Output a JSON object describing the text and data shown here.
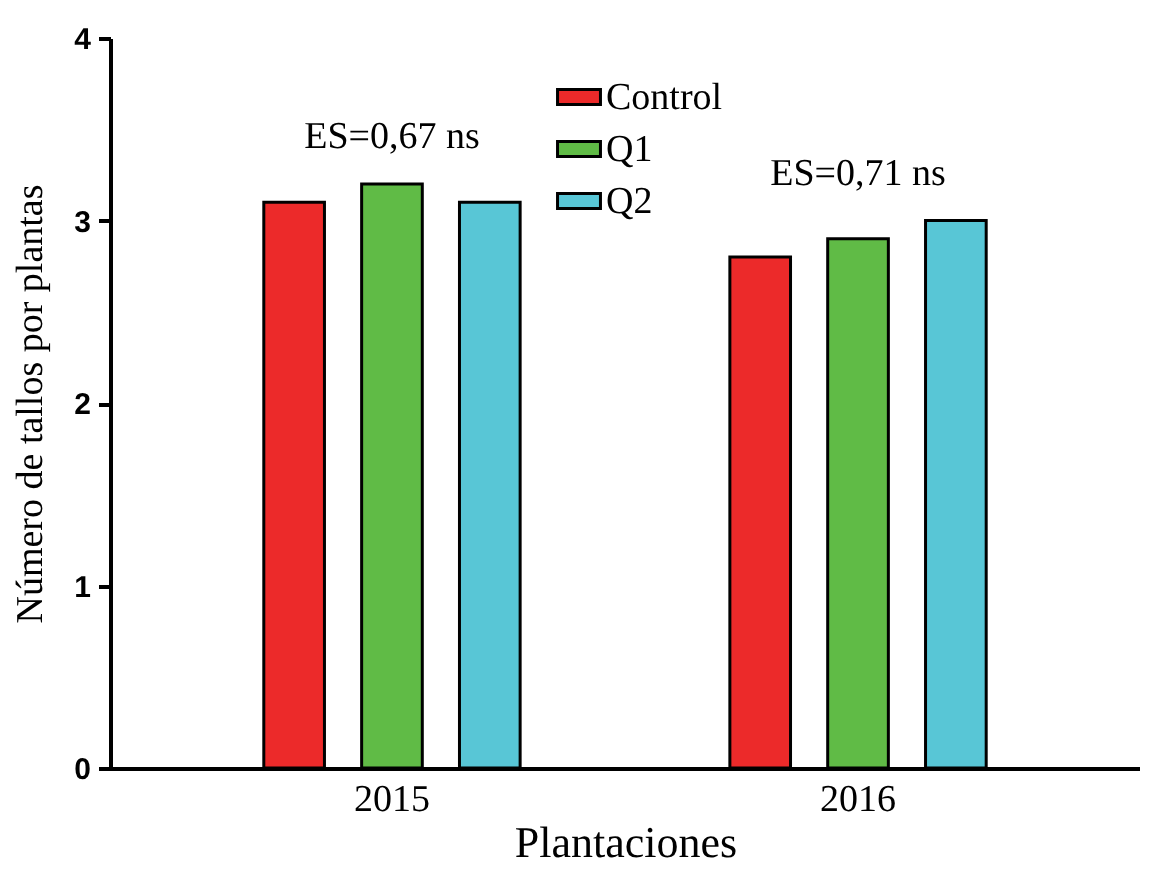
{
  "chart_data": {
    "type": "bar",
    "xlabel": "Plantaciones",
    "ylabel": "Número de tallos por plantas",
    "categories": [
      "2015",
      "2016"
    ],
    "series": [
      {
        "name": "Control",
        "color": "#ec2a2a",
        "values": [
          3.1,
          2.8
        ]
      },
      {
        "name": "Q1",
        "color": "#60bb46",
        "values": [
          3.2,
          2.9
        ]
      },
      {
        "name": "Q2",
        "color": "#58c6d6",
        "values": [
          3.1,
          3.0
        ]
      }
    ],
    "ylim": [
      0,
      4
    ],
    "yticks": [
      0,
      1,
      2,
      3,
      4
    ],
    "grid": false,
    "legend": "top",
    "annotations": [
      "ES=0,67 ns",
      "ES=0,71 ns"
    ]
  }
}
